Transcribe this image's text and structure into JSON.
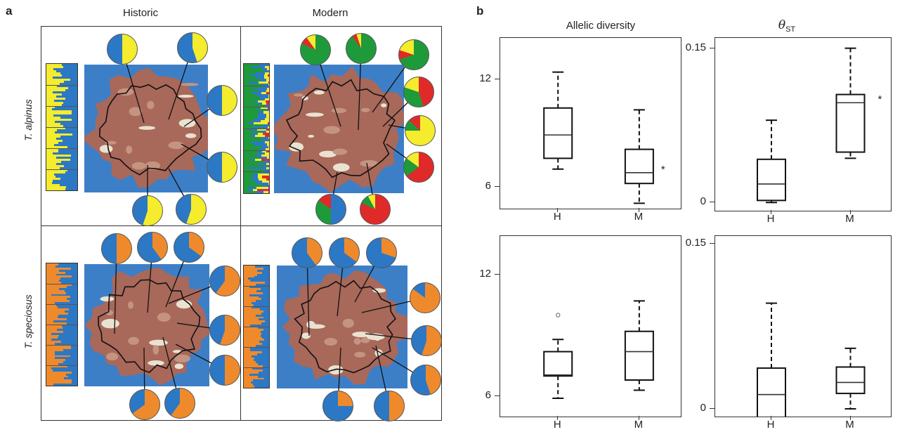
{
  "panel_a": {
    "label": "a",
    "col_headers": [
      "Historic",
      "Modern"
    ],
    "row_labels": [
      "T. alpinus",
      "T. speciosus"
    ]
  },
  "panel_b": {
    "label": "b",
    "col_headers": [
      "Allelic diversity",
      "θ",
      "ST"
    ],
    "significance_marker": "*"
  },
  "colors": {
    "blue": "#2c78c4",
    "yellow": "#f4ec2c",
    "green": "#1f9a3a",
    "red": "#e02a2a",
    "orange": "#ef8a2c",
    "magenta": "#d8287a",
    "terrain": "#a8685a",
    "water": "#3d7fc7"
  },
  "pies": {
    "alpinus_historic": [
      [
        {
          "c": "yellow",
          "v": 0.5
        },
        {
          "c": "blue",
          "v": 0.5
        }
      ],
      [
        {
          "c": "yellow",
          "v": 0.45
        },
        {
          "c": "blue",
          "v": 0.55
        }
      ],
      [
        {
          "c": "yellow",
          "v": 0.5
        },
        {
          "c": "blue",
          "v": 0.5
        }
      ],
      [
        {
          "c": "yellow",
          "v": 0.5
        },
        {
          "c": "blue",
          "v": 0.5
        }
      ],
      [
        {
          "c": "yellow",
          "v": 0.55
        },
        {
          "c": "blue",
          "v": 0.45
        }
      ],
      [
        {
          "c": "yellow",
          "v": 0.55
        },
        {
          "c": "blue",
          "v": 0.45
        }
      ]
    ],
    "alpinus_modern": [
      [
        {
          "c": "green",
          "v": 0.82
        },
        {
          "c": "red",
          "v": 0.08
        },
        {
          "c": "yellow",
          "v": 0.1
        }
      ],
      [
        {
          "c": "green",
          "v": 0.9
        },
        {
          "c": "red",
          "v": 0.05
        },
        {
          "c": "yellow",
          "v": 0.05
        }
      ],
      [
        {
          "c": "green",
          "v": 0.7
        },
        {
          "c": "red",
          "v": 0.1
        },
        {
          "c": "yellow",
          "v": 0.2
        }
      ],
      [
        {
          "c": "red",
          "v": 0.45
        },
        {
          "c": "green",
          "v": 0.35
        },
        {
          "c": "yellow",
          "v": 0.2
        }
      ],
      [
        {
          "c": "yellow",
          "v": 0.75
        },
        {
          "c": "green",
          "v": 0.12
        },
        {
          "c": "red",
          "v": 0.13
        }
      ],
      [
        {
          "c": "red",
          "v": 0.65
        },
        {
          "c": "green",
          "v": 0.2
        },
        {
          "c": "yellow",
          "v": 0.15
        }
      ],
      [
        {
          "c": "blue",
          "v": 0.5
        },
        {
          "c": "green",
          "v": 0.35
        },
        {
          "c": "red",
          "v": 0.15
        }
      ],
      [
        {
          "c": "red",
          "v": 0.82
        },
        {
          "c": "green",
          "v": 0.1
        },
        {
          "c": "yellow",
          "v": 0.08
        }
      ]
    ],
    "speciosus_historic": [
      [
        {
          "c": "orange",
          "v": 0.5
        },
        {
          "c": "blue",
          "v": 0.5
        }
      ],
      [
        {
          "c": "orange",
          "v": 0.4
        },
        {
          "c": "blue",
          "v": 0.6
        }
      ],
      [
        {
          "c": "orange",
          "v": 0.35
        },
        {
          "c": "blue",
          "v": 0.65
        }
      ],
      [
        {
          "c": "orange",
          "v": 0.6
        },
        {
          "c": "blue",
          "v": 0.4
        }
      ],
      [
        {
          "c": "orange",
          "v": 0.55
        },
        {
          "c": "blue",
          "v": 0.45
        }
      ],
      [
        {
          "c": "orange",
          "v": 0.5
        },
        {
          "c": "blue",
          "v": 0.5
        }
      ],
      [
        {
          "c": "orange",
          "v": 0.65
        },
        {
          "c": "blue",
          "v": 0.35
        }
      ],
      [
        {
          "c": "orange",
          "v": 0.6
        },
        {
          "c": "blue",
          "v": 0.4
        }
      ]
    ],
    "speciosus_modern": [
      [
        {
          "c": "orange",
          "v": 0.4
        },
        {
          "c": "blue",
          "v": 0.6
        }
      ],
      [
        {
          "c": "orange",
          "v": 0.35
        },
        {
          "c": "blue",
          "v": 0.65
        }
      ],
      [
        {
          "c": "orange",
          "v": 0.3
        },
        {
          "c": "blue",
          "v": 0.7
        }
      ],
      [
        {
          "c": "orange",
          "v": 0.85
        },
        {
          "c": "blue",
          "v": 0.15
        }
      ],
      [
        {
          "c": "orange",
          "v": 0.55
        },
        {
          "c": "blue",
          "v": 0.45
        }
      ],
      [
        {
          "c": "orange",
          "v": 0.45
        },
        {
          "c": "blue",
          "v": 0.55
        }
      ],
      [
        {
          "c": "orange",
          "v": 0.25
        },
        {
          "c": "blue",
          "v": 0.75
        }
      ],
      [
        {
          "c": "orange",
          "v": 0.5
        },
        {
          "c": "blue",
          "v": 0.5
        }
      ]
    ]
  },
  "chart_data": [
    {
      "type": "box",
      "title": "Allelic diversity",
      "species": "T. alpinus",
      "categories": [
        "H",
        "M"
      ],
      "yticks": [
        6,
        12
      ],
      "ylim": [
        4.8,
        14.3
      ],
      "boxes": [
        {
          "label": "H",
          "whisker_low": 7.0,
          "q1": 7.6,
          "median": 8.9,
          "q3": 10.4,
          "whisker_high": 12.4,
          "outliers": []
        },
        {
          "label": "M",
          "whisker_low": 5.1,
          "q1": 6.2,
          "median": 6.8,
          "q3": 8.1,
          "whisker_high": 10.3,
          "outliers": [],
          "significant": true
        }
      ]
    },
    {
      "type": "box",
      "title": "θST",
      "species": "T. alpinus",
      "categories": [
        "H",
        "M"
      ],
      "yticks": [
        0,
        0.15
      ],
      "ylim": [
        -0.008,
        0.16
      ],
      "boxes": [
        {
          "label": "H",
          "whisker_low": 0.0,
          "q1": 0.002,
          "median": 0.018,
          "q3": 0.042,
          "whisker_high": 0.08,
          "outliers": []
        },
        {
          "label": "M",
          "whisker_low": 0.043,
          "q1": 0.049,
          "median": 0.097,
          "q3": 0.105,
          "whisker_high": 0.15,
          "outliers": [],
          "significant": true
        }
      ]
    },
    {
      "type": "box",
      "title": "Allelic diversity",
      "species": "T. speciosus",
      "categories": [
        "H",
        "M"
      ],
      "yticks": [
        6,
        12
      ],
      "ylim": [
        5.0,
        13.9
      ],
      "boxes": [
        {
          "label": "H",
          "whisker_low": 5.9,
          "q1": 7.0,
          "median": 7.05,
          "q3": 8.2,
          "whisker_high": 8.8,
          "outliers": [
            10.0
          ]
        },
        {
          "label": "M",
          "whisker_low": 6.3,
          "q1": 6.8,
          "median": 8.2,
          "q3": 9.2,
          "whisker_high": 10.7,
          "outliers": []
        }
      ]
    },
    {
      "type": "box",
      "title": "θST",
      "species": "T. speciosus",
      "categories": [
        "H",
        "M"
      ],
      "yticks": [
        0,
        0.15
      ],
      "ylim": [
        -0.007,
        0.157
      ],
      "boxes": [
        {
          "label": "H",
          "whisker_low": -0.01,
          "q1": -0.01,
          "median": 0.013,
          "q3": 0.037,
          "whisker_high": 0.096,
          "outliers": []
        },
        {
          "label": "M",
          "whisker_low": 0.0,
          "q1": 0.014,
          "median": 0.024,
          "q3": 0.038,
          "whisker_high": 0.055,
          "outliers": []
        }
      ]
    }
  ]
}
